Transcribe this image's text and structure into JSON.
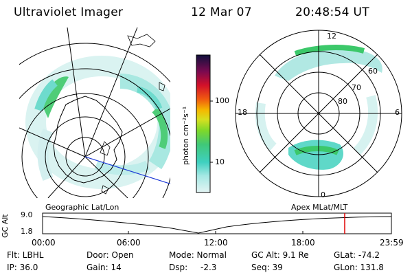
{
  "header": {
    "instrument": "Ultraviolet Imager",
    "date": "12 Mar 07",
    "time": "20:48:54 UT"
  },
  "left_panel": {
    "label": "Geographic Lat/Lon"
  },
  "right_panel": {
    "label": "Apex MLat/MLT",
    "mlt_labels": [
      "12",
      "18",
      "6",
      "0"
    ],
    "mlat_labels": [
      "60",
      "70",
      "80"
    ]
  },
  "colorbar": {
    "unit_label": "photon cm⁻²s⁻¹",
    "tick_labels": [
      "100",
      "10"
    ]
  },
  "altitude_plot": {
    "axis_label": "GC Alt",
    "y_ticks": [
      "9.0",
      "1.8"
    ],
    "x_ticks": [
      "00:00",
      "06:00",
      "12:00",
      "18:00",
      "23:59"
    ],
    "marker_color": "#e00000"
  },
  "status": {
    "flt": "Flt: LBHL",
    "ip": "IP: 36.0",
    "door": "Door: Open",
    "gain": "Gain: 14",
    "mode": "Mode: Normal",
    "dsp_label": "Dsp:",
    "dsp_value": "-2.3",
    "gc_alt": "GC Alt: 9.1 Re",
    "seq": "Seq: 39",
    "glat": "GLat: -74.2",
    "glon": "GLon: 131.8"
  },
  "colors": {
    "aurora_low": "#b8ece8",
    "aurora_mid": "#5fd8c8",
    "aurora_high": "#3cc86a",
    "track_line": "#1f3bd6"
  }
}
